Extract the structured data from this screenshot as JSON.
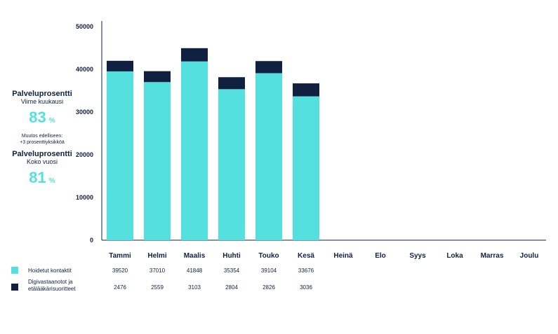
{
  "kpis": [
    {
      "title": "Palveluprosentti",
      "subtitle": "Viime kuukausi",
      "value": "83",
      "unit": "%",
      "note_line1": "Muutos edelliseen:",
      "note_line2": "+3 prosenttiyksikköä"
    },
    {
      "title": "Palveluprosentti",
      "subtitle": "Koko vuosi",
      "value": "81",
      "unit": "%"
    }
  ],
  "colors": {
    "handled": "#55e0e0",
    "digital": "#0f2040",
    "axis": "#0f2040"
  },
  "chart_data": {
    "type": "bar",
    "stacked": true,
    "categories": [
      "Tammi",
      "Helmi",
      "Maalis",
      "Huhti",
      "Touko",
      "Kesä",
      "Heinä",
      "Elo",
      "Syys",
      "Loka",
      "Marras",
      "Joulu"
    ],
    "series": [
      {
        "name": "Hoidetut kontaktit",
        "values": [
          39520,
          37010,
          41848,
          35354,
          39104,
          33676,
          null,
          null,
          null,
          null,
          null,
          null
        ],
        "labels": [
          "39520",
          "37010",
          "41848",
          "35354",
          "39104",
          "33676"
        ]
      },
      {
        "name": "Digivastaanotot ja etälääkärisuoritteet",
        "name_lines": [
          "Digivastaanotot ja",
          "etälääkärisuoritteet"
        ],
        "values": [
          2476,
          2559,
          3103,
          2804,
          2826,
          3036,
          null,
          null,
          null,
          null,
          null,
          null
        ],
        "labels": [
          "2476",
          "2559",
          "3103",
          "2804",
          "2826",
          "3036"
        ]
      }
    ],
    "yticks": [
      "0",
      "10000",
      "20000",
      "30000",
      "40000",
      "50000"
    ],
    "ylim": [
      0,
      50000
    ],
    "grid": false,
    "legend": "bottom-left"
  }
}
